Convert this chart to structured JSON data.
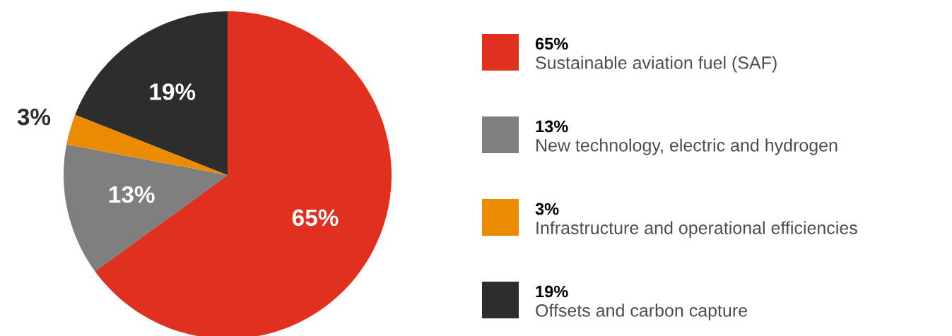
{
  "chart_data": {
    "type": "pie",
    "categories": [
      "Sustainable aviation fuel (SAF)",
      "New technology, electric and hydrogen",
      "Infrastructure and operational efficiencies",
      "Offsets and carbon capture"
    ],
    "values": [
      65,
      13,
      3,
      19
    ],
    "value_labels": [
      "65%",
      "13%",
      "3%",
      "19%"
    ],
    "colors": [
      "#e03120",
      "#7f7f7f",
      "#eb8c00",
      "#2d2d2d"
    ],
    "legend": "right"
  }
}
